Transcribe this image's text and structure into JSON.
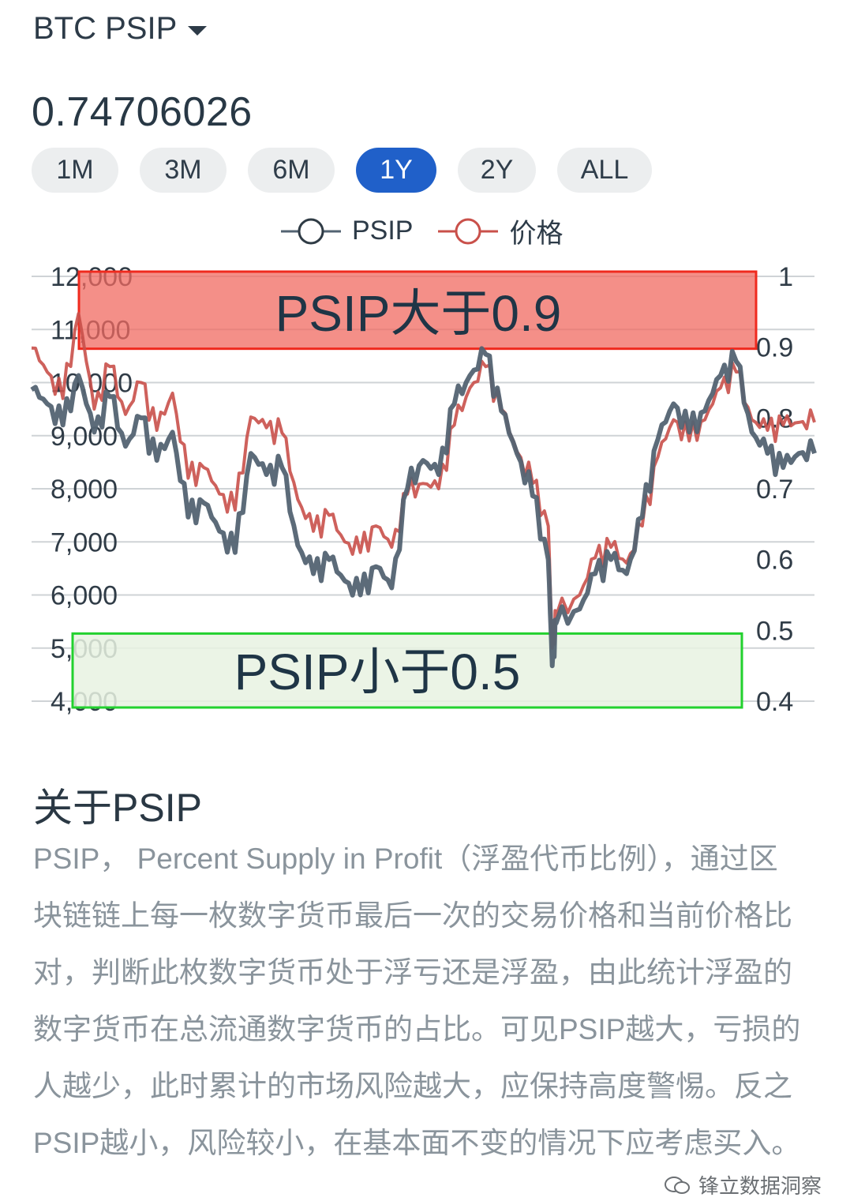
{
  "header": {
    "title": "BTC PSIP"
  },
  "current_value": "0.74706026",
  "ranges": [
    {
      "label": "1M",
      "active": false
    },
    {
      "label": "3M",
      "active": false
    },
    {
      "label": "6M",
      "active": false
    },
    {
      "label": "1Y",
      "active": true
    },
    {
      "label": "2Y",
      "active": false
    },
    {
      "label": "ALL",
      "active": false
    }
  ],
  "colors": {
    "psip": "#536372",
    "price": "#c9504a",
    "high_zone": "#f06a60",
    "low_zone": "#e8f2e2"
  },
  "annotations": {
    "high": "PSIP大于0.9",
    "low": "PSIP小于0.5"
  },
  "chart_data": {
    "type": "line",
    "x_range": [
      0,
      1
    ],
    "y_left": {
      "ticks": [
        "12,000",
        "11,000",
        "10,000",
        "9,000",
        "8,000",
        "7,000",
        "6,000",
        "5,000",
        "4,000"
      ],
      "range": [
        4000,
        12000
      ]
    },
    "y_right": {
      "ticks": [
        "1",
        "0.9",
        "0.8",
        "0.7",
        "0.6",
        "0.5",
        "0.4"
      ],
      "range": [
        0.4,
        1.0
      ]
    },
    "legend_position": "top-center",
    "grid": true,
    "series": [
      {
        "name": "PSIP",
        "axis": "right",
        "color": "#536372",
        "points": [
          [
            0,
            0.84
          ],
          [
            0.02,
            0.82
          ],
          [
            0.04,
            0.79
          ],
          [
            0.06,
            0.86
          ],
          [
            0.08,
            0.78
          ],
          [
            0.1,
            0.83
          ],
          [
            0.12,
            0.76
          ],
          [
            0.14,
            0.8
          ],
          [
            0.16,
            0.74
          ],
          [
            0.18,
            0.78
          ],
          [
            0.2,
            0.66
          ],
          [
            0.22,
            0.68
          ],
          [
            0.24,
            0.64
          ],
          [
            0.26,
            0.61
          ],
          [
            0.28,
            0.75
          ],
          [
            0.3,
            0.72
          ],
          [
            0.32,
            0.73
          ],
          [
            0.34,
            0.62
          ],
          [
            0.36,
            0.58
          ],
          [
            0.38,
            0.6
          ],
          [
            0.4,
            0.57
          ],
          [
            0.42,
            0.55
          ],
          [
            0.44,
            0.59
          ],
          [
            0.46,
            0.56
          ],
          [
            0.48,
            0.7
          ],
          [
            0.5,
            0.74
          ],
          [
            0.52,
            0.72
          ],
          [
            0.54,
            0.82
          ],
          [
            0.56,
            0.86
          ],
          [
            0.58,
            0.89
          ],
          [
            0.6,
            0.81
          ],
          [
            0.62,
            0.75
          ],
          [
            0.64,
            0.69
          ],
          [
            0.66,
            0.6
          ],
          [
            0.665,
            0.45
          ],
          [
            0.67,
            0.51
          ],
          [
            0.7,
            0.53
          ],
          [
            0.72,
            0.58
          ],
          [
            0.74,
            0.6
          ],
          [
            0.76,
            0.58
          ],
          [
            0.78,
            0.66
          ],
          [
            0.8,
            0.77
          ],
          [
            0.82,
            0.82
          ],
          [
            0.84,
            0.78
          ],
          [
            0.86,
            0.81
          ],
          [
            0.88,
            0.86
          ],
          [
            0.9,
            0.88
          ],
          [
            0.92,
            0.78
          ],
          [
            0.94,
            0.75
          ],
          [
            0.96,
            0.73
          ],
          [
            0.98,
            0.75
          ],
          [
            1,
            0.75
          ]
        ]
      },
      {
        "name": "价格",
        "axis": "left",
        "color": "#c9504a",
        "points": [
          [
            0,
            10650
          ],
          [
            0.02,
            10200
          ],
          [
            0.04,
            9700
          ],
          [
            0.06,
            11300
          ],
          [
            0.08,
            9500
          ],
          [
            0.1,
            10300
          ],
          [
            0.12,
            9400
          ],
          [
            0.14,
            10000
          ],
          [
            0.16,
            9100
          ],
          [
            0.18,
            9800
          ],
          [
            0.2,
            8200
          ],
          [
            0.22,
            8400
          ],
          [
            0.24,
            7900
          ],
          [
            0.26,
            7600
          ],
          [
            0.28,
            9350
          ],
          [
            0.3,
            9150
          ],
          [
            0.32,
            9050
          ],
          [
            0.34,
            7800
          ],
          [
            0.36,
            7200
          ],
          [
            0.38,
            7500
          ],
          [
            0.4,
            7000
          ],
          [
            0.42,
            6800
          ],
          [
            0.44,
            7300
          ],
          [
            0.46,
            6900
          ],
          [
            0.48,
            7900
          ],
          [
            0.5,
            8100
          ],
          [
            0.52,
            8000
          ],
          [
            0.54,
            9200
          ],
          [
            0.56,
            9900
          ],
          [
            0.58,
            10300
          ],
          [
            0.6,
            9500
          ],
          [
            0.62,
            8700
          ],
          [
            0.64,
            8100
          ],
          [
            0.66,
            7300
          ],
          [
            0.665,
            5000
          ],
          [
            0.67,
            5600
          ],
          [
            0.7,
            6000
          ],
          [
            0.72,
            6700
          ],
          [
            0.74,
            6900
          ],
          [
            0.76,
            6600
          ],
          [
            0.78,
            7300
          ],
          [
            0.8,
            8600
          ],
          [
            0.82,
            9300
          ],
          [
            0.84,
            8900
          ],
          [
            0.86,
            9300
          ],
          [
            0.88,
            9900
          ],
          [
            0.9,
            10200
          ],
          [
            0.92,
            9300
          ],
          [
            0.94,
            9100
          ],
          [
            0.96,
            9200
          ],
          [
            0.98,
            9250
          ],
          [
            1,
            9250
          ]
        ]
      }
    ]
  },
  "about": {
    "title": "关于PSIP",
    "body": "PSIP， Percent Supply in Profit（浮盈代币比例），通过区块链链上每一枚数字货币最后一次的交易价格和当前价格比对，判断此枚数字货币处于浮亏还是浮盈，由此统计浮盈的数字货币在总流通数字货币的占比。可见PSIP越大，亏损的人越少，此时累计的市场风险越大，应保持高度警惕。反之PSIP越小，风险较小，在基本面不变的情况下应考虑买入。"
  },
  "watermark": "锋立数据洞察"
}
